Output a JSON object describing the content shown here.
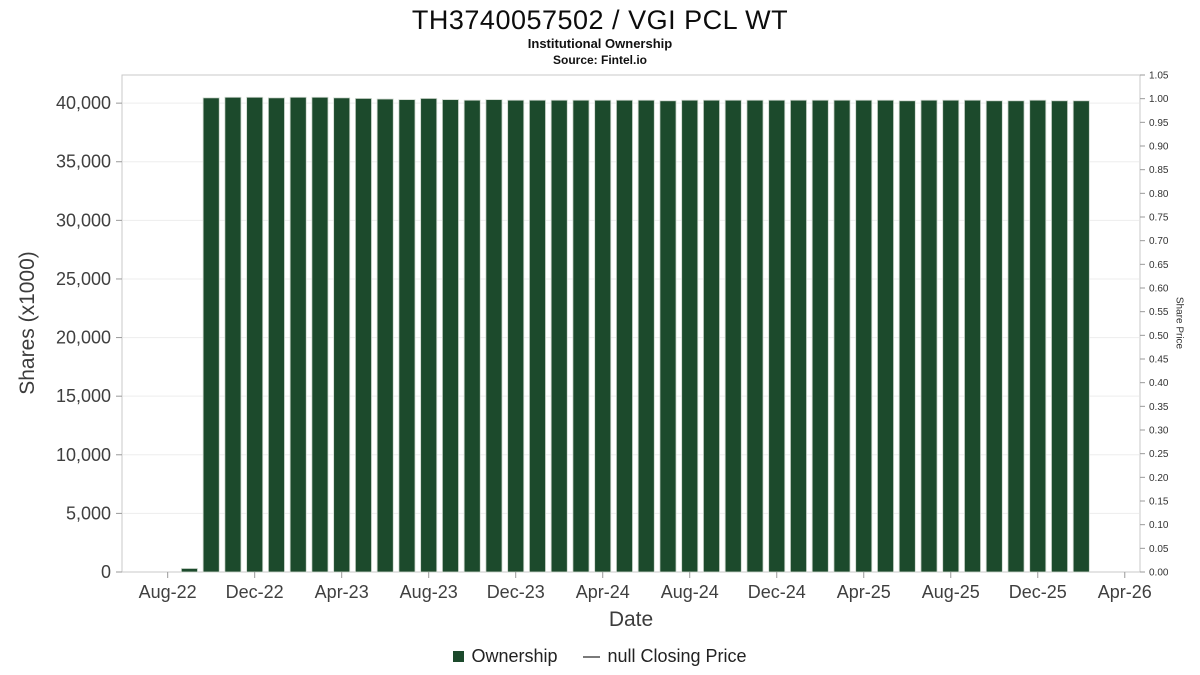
{
  "header": {
    "title": "TH3740057502 / VGI PCL WT",
    "subtitle": "Institutional Ownership",
    "source": "Source: Fintel.io"
  },
  "chart_data": {
    "type": "bar",
    "title": "TH3740057502 / VGI PCL WT",
    "subtitle": "Institutional Ownership",
    "source": "Source: Fintel.io",
    "xlabel": "Date",
    "ylabel_left": "Shares (x1000)",
    "ylabel_right": "Share Price",
    "categories": [
      "Sep-22",
      "Oct-22",
      "Nov-22",
      "Dec-22",
      "Jan-23",
      "Feb-23",
      "Mar-23",
      "Apr-23",
      "May-23",
      "Jun-23",
      "Jul-23",
      "Aug-23",
      "Sep-23",
      "Oct-23",
      "Nov-23",
      "Dec-23",
      "Jan-24",
      "Feb-24",
      "Mar-24",
      "Apr-24",
      "May-24",
      "Jun-24",
      "Jul-24",
      "Aug-24",
      "Sep-24",
      "Oct-24",
      "Nov-24",
      "Dec-24",
      "Jan-25",
      "Feb-25",
      "Mar-25",
      "Apr-25",
      "May-25",
      "Jun-25",
      "Jul-25",
      "Aug-25",
      "Sep-25",
      "Oct-25",
      "Nov-25",
      "Dec-25",
      "Jan-26",
      "Feb-26"
    ],
    "values": [
      300,
      40450,
      40500,
      40500,
      40450,
      40500,
      40500,
      40450,
      40400,
      40350,
      40300,
      40400,
      40300,
      40250,
      40300,
      40250,
      40250,
      40250,
      40250,
      40250,
      40250,
      40250,
      40200,
      40250,
      40250,
      40250,
      40250,
      40250,
      40250,
      40250,
      40250,
      40250,
      40250,
      40200,
      40250,
      40250,
      40250,
      40200,
      40200,
      40250,
      40200,
      40200
    ],
    "x_tick_labels": [
      "Aug-22",
      "Dec-22",
      "Apr-23",
      "Aug-23",
      "Dec-23",
      "Apr-24",
      "Aug-24",
      "Dec-24",
      "Apr-25",
      "Aug-25",
      "Dec-25",
      "Apr-26"
    ],
    "y_left_ticks": [
      "0",
      "5,000",
      "10,000",
      "15,000",
      "20,000",
      "25,000",
      "30,000",
      "35,000",
      "40,000"
    ],
    "y_right_ticks": [
      "0.00",
      "0.05",
      "0.10",
      "0.15",
      "0.20",
      "0.25",
      "0.30",
      "0.35",
      "0.40",
      "0.45",
      "0.50",
      "0.55",
      "0.60",
      "0.65",
      "0.70",
      "0.75",
      "0.80",
      "0.85",
      "0.90",
      "0.95",
      "1.00",
      "1.05"
    ],
    "ylim_left": [
      0,
      42400
    ],
    "ylim_right": [
      0,
      1.05
    ],
    "grid": true,
    "legend_position": "bottom",
    "legend": [
      {
        "label": "Ownership",
        "marker": "square",
        "color": "#1c4a2c"
      },
      {
        "label": "null Closing Price",
        "marker": "line",
        "color": "#7a7a7a"
      }
    ],
    "colors": {
      "bar": "#1c4a2c",
      "bar_edge": "#cfd8cf",
      "border": "#c9c9c9",
      "grid": "#ededed",
      "tick_text": "#3f3f3f",
      "axis_tick": "#999999"
    }
  }
}
